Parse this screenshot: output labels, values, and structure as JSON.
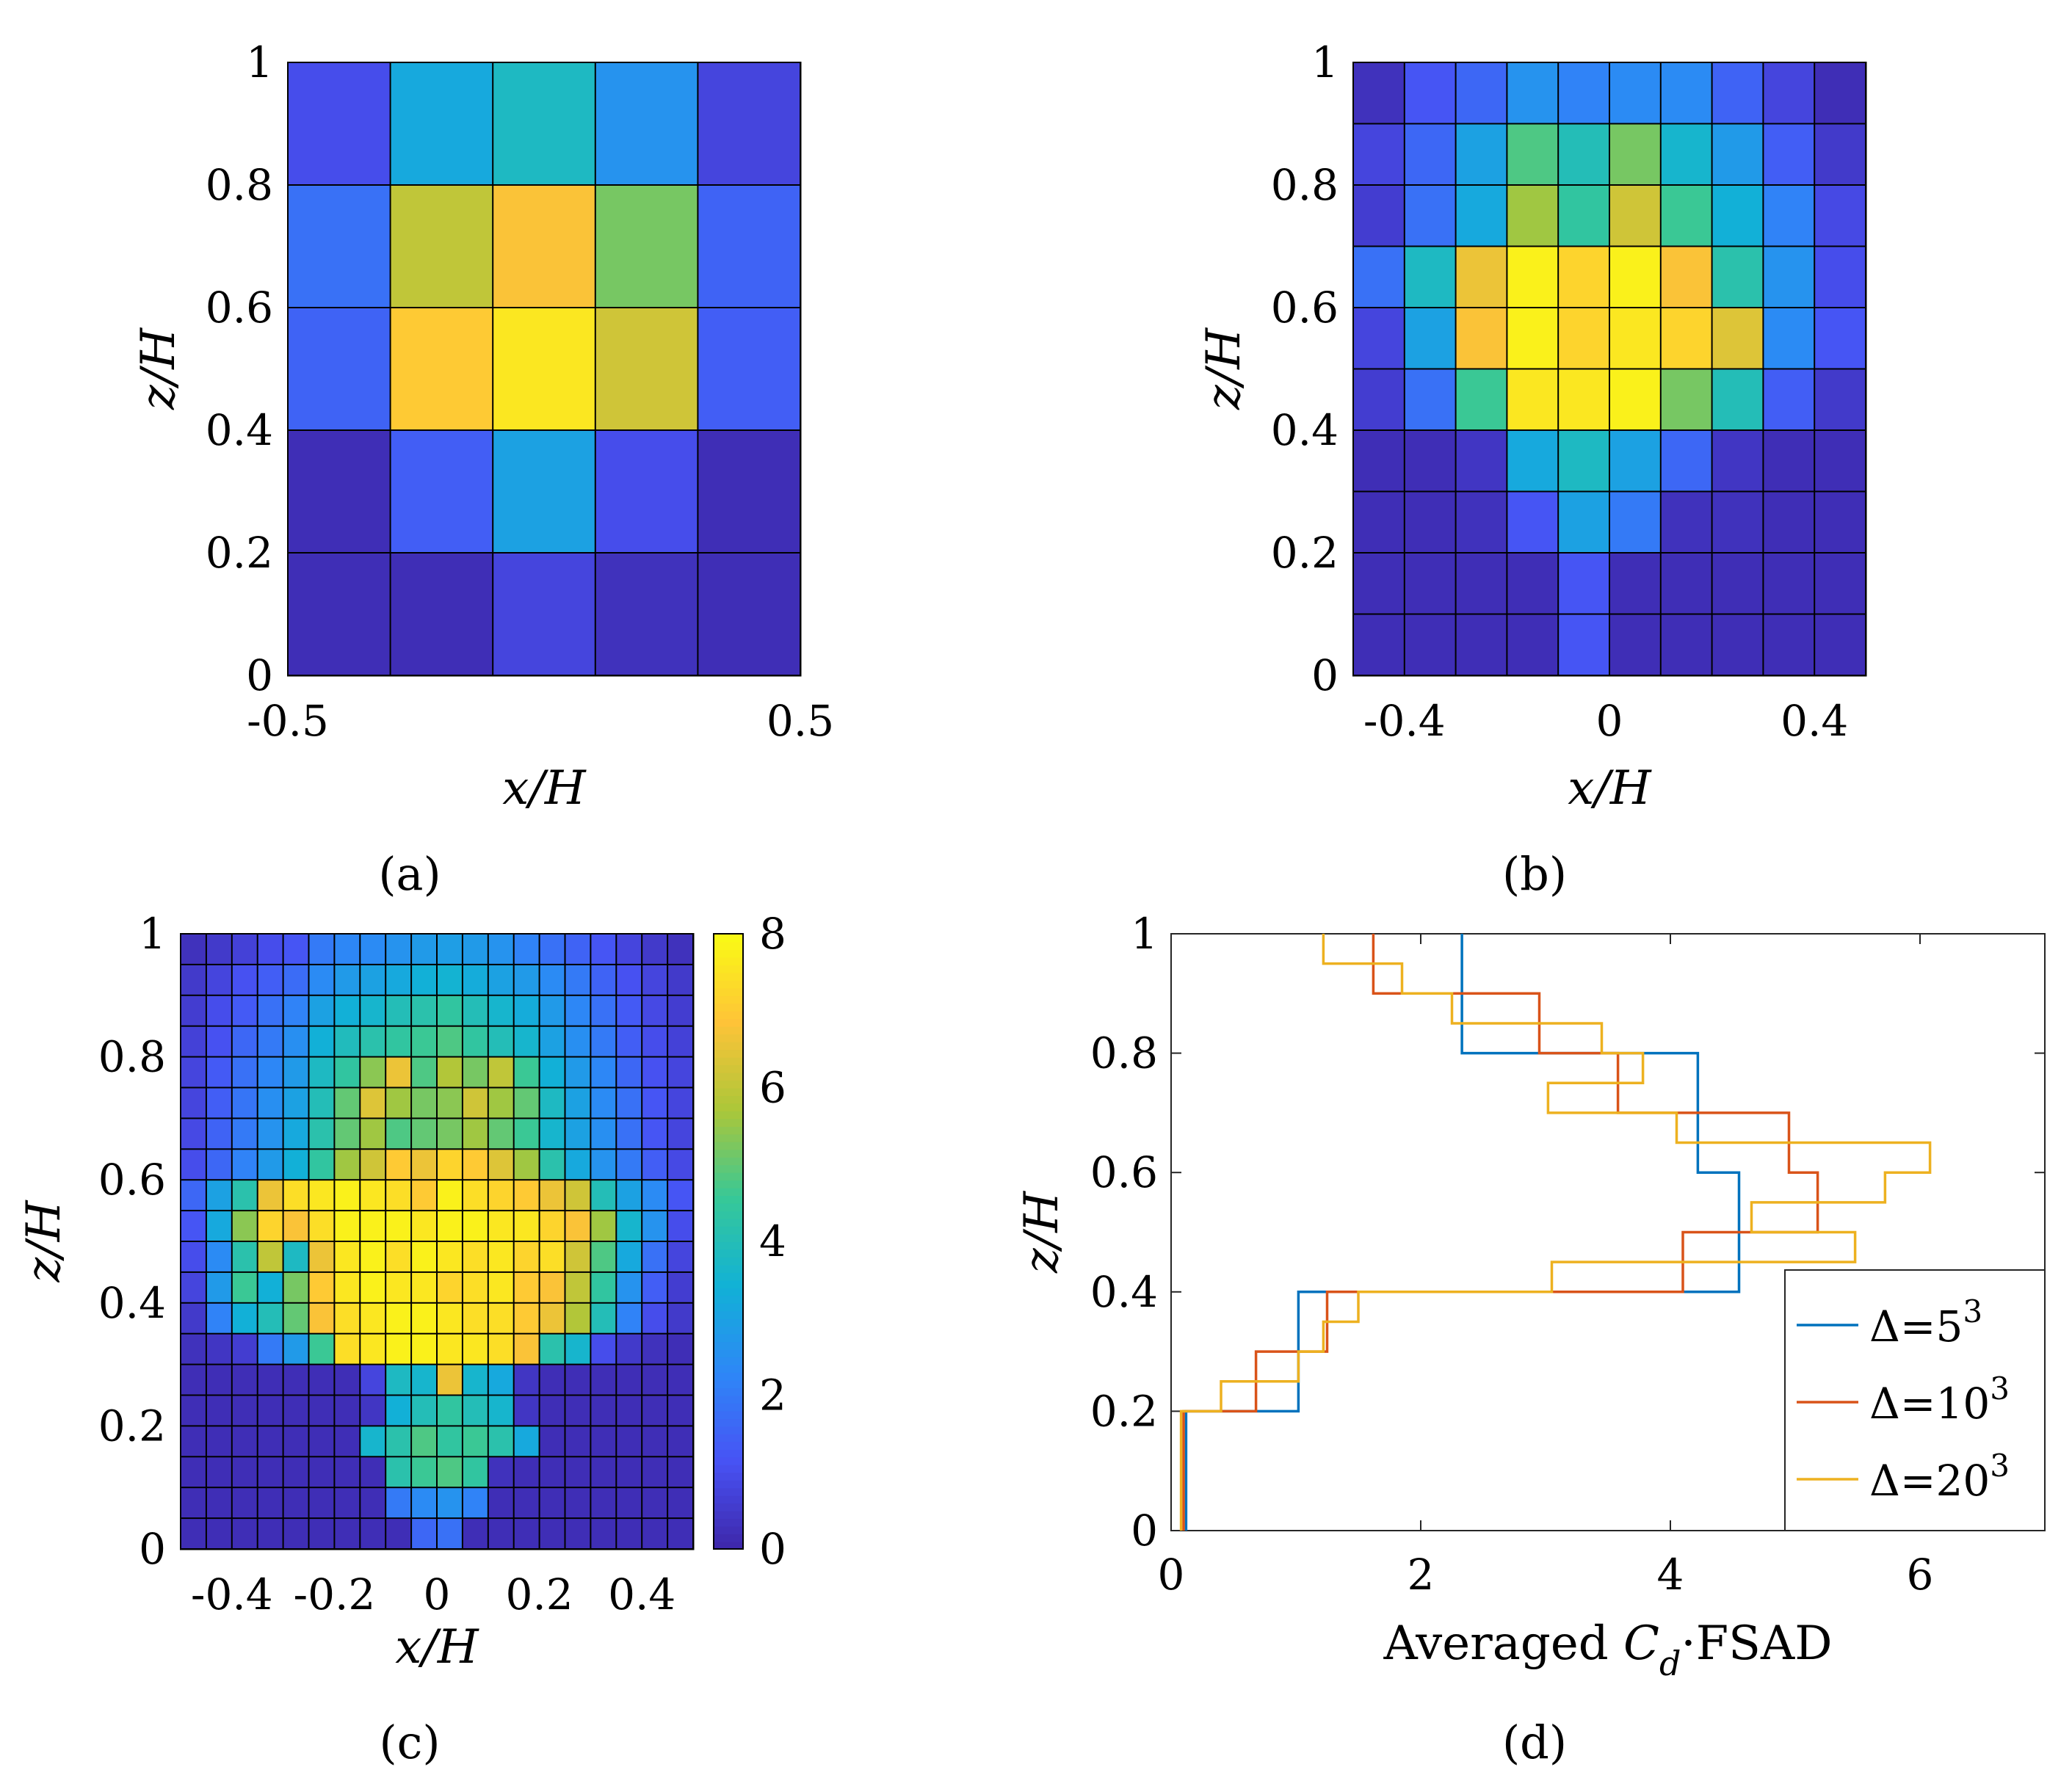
{
  "figure": {
    "panel_labels": [
      "(a)",
      "(b)",
      "(c)",
      "(d)"
    ]
  },
  "chart_data": [
    {
      "panel": "a",
      "type": "heatmap",
      "xlabel": "x/H",
      "ylabel": "z/H",
      "xlim": [
        -0.5,
        0.5
      ],
      "ylim": [
        0,
        1
      ],
      "xticks": [
        "-0.5",
        "0.5"
      ],
      "yticks": [
        "0",
        "0.2",
        "0.4",
        "0.6",
        "0.8",
        "1"
      ],
      "z_rows_top_to_bottom": [
        [
          1.0,
          3.2,
          3.8,
          2.6,
          0.8
        ],
        [
          1.8,
          6.0,
          6.8,
          5.2,
          1.5
        ],
        [
          1.5,
          7.0,
          7.6,
          6.2,
          1.4
        ],
        [
          0.2,
          1.4,
          3.0,
          1.0,
          0.2
        ],
        [
          0.2,
          0.2,
          0.8,
          0.3,
          0.2
        ]
      ],
      "colorscale": "parula",
      "clim": [
        0,
        8
      ]
    },
    {
      "panel": "b",
      "type": "heatmap",
      "xlabel": "x/H",
      "ylabel": "z/H",
      "xlim": [
        -0.5,
        0.5
      ],
      "ylim": [
        0,
        1
      ],
      "xticks": [
        "-0.4",
        "0",
        "0.4"
      ],
      "yticks": [
        "0",
        "0.2",
        "0.4",
        "0.6",
        "0.8",
        "1"
      ],
      "z_rows_top_to_bottom": [
        [
          0.3,
          1.2,
          1.6,
          2.6,
          2.2,
          2.4,
          2.4,
          1.5,
          0.8,
          0.2
        ],
        [
          0.8,
          1.6,
          3.0,
          4.8,
          4.0,
          5.2,
          3.6,
          2.8,
          1.4,
          0.5
        ],
        [
          0.6,
          1.8,
          3.2,
          5.6,
          4.4,
          6.2,
          4.6,
          3.4,
          2.2,
          0.9
        ],
        [
          1.8,
          3.8,
          6.6,
          7.8,
          7.2,
          7.8,
          6.8,
          4.2,
          2.6,
          1.0
        ],
        [
          0.8,
          3.0,
          6.8,
          7.8,
          7.2,
          7.6,
          7.2,
          6.4,
          2.4,
          1.2
        ],
        [
          0.6,
          1.8,
          4.6,
          7.6,
          7.6,
          7.8,
          5.2,
          4.0,
          1.4,
          0.5
        ],
        [
          0.2,
          0.2,
          0.4,
          3.2,
          3.8,
          3.0,
          1.6,
          0.4,
          0.2,
          0.2
        ],
        [
          0.2,
          0.2,
          0.3,
          1.2,
          3.0,
          2.0,
          0.3,
          0.3,
          0.2,
          0.2
        ],
        [
          0.2,
          0.2,
          0.2,
          0.2,
          1.2,
          0.2,
          0.2,
          0.2,
          0.2,
          0.2
        ],
        [
          0.2,
          0.2,
          0.2,
          0.2,
          1.2,
          0.2,
          0.2,
          0.2,
          0.2,
          0.2
        ]
      ],
      "colorscale": "parula",
      "clim": [
        0,
        8
      ]
    },
    {
      "panel": "c",
      "type": "heatmap",
      "xlabel": "x/H",
      "ylabel": "z/H",
      "xlim": [
        -0.5,
        0.5
      ],
      "ylim": [
        0,
        1
      ],
      "xticks": [
        "-0.4",
        "-0.2",
        "0",
        "0.2",
        "0.4"
      ],
      "yticks": [
        "0",
        "0.2",
        "0.4",
        "0.6",
        "0.8",
        "1"
      ],
      "colorbar": {
        "ticks": [
          "0",
          "2",
          "4",
          "6",
          "8"
        ],
        "range": [
          0,
          8
        ]
      },
      "z_rows_top_to_bottom": [
        [
          0.3,
          0.5,
          0.7,
          1.0,
          1.2,
          2.0,
          2.3,
          2.4,
          2.6,
          2.8,
          2.9,
          2.8,
          2.6,
          2.2,
          1.8,
          1.5,
          1.2,
          0.8,
          0.5,
          0.3
        ],
        [
          0.5,
          0.8,
          1.1,
          1.4,
          1.7,
          2.4,
          2.8,
          3.0,
          3.2,
          3.4,
          3.5,
          3.3,
          3.0,
          2.8,
          2.4,
          2.0,
          1.5,
          1.1,
          0.8,
          0.5
        ],
        [
          0.6,
          1.0,
          1.3,
          1.8,
          2.2,
          3.0,
          3.4,
          3.6,
          4.0,
          4.2,
          4.4,
          4.0,
          3.6,
          3.3,
          2.8,
          2.3,
          1.8,
          1.3,
          0.9,
          0.6
        ],
        [
          0.7,
          1.1,
          1.6,
          2.0,
          2.5,
          3.4,
          3.9,
          4.2,
          4.4,
          4.6,
          4.8,
          4.4,
          4.0,
          3.6,
          3.0,
          2.5,
          2.0,
          1.4,
          1.0,
          0.7
        ],
        [
          0.8,
          1.3,
          1.8,
          2.3,
          2.8,
          3.8,
          4.4,
          5.4,
          6.6,
          4.8,
          5.8,
          5.2,
          6.0,
          4.6,
          3.4,
          2.8,
          2.3,
          1.6,
          1.1,
          0.8
        ],
        [
          0.8,
          1.4,
          1.9,
          2.5,
          3.0,
          4.0,
          5.0,
          6.4,
          5.6,
          5.2,
          5.4,
          6.2,
          5.6,
          5.0,
          3.8,
          3.0,
          2.4,
          1.8,
          1.2,
          0.8
        ],
        [
          0.9,
          1.5,
          2.0,
          2.6,
          3.2,
          4.2,
          5.0,
          5.6,
          4.8,
          5.0,
          5.2,
          5.6,
          5.0,
          4.6,
          3.6,
          3.0,
          2.5,
          1.8,
          1.2,
          0.8
        ],
        [
          1.0,
          1.6,
          2.2,
          2.8,
          3.4,
          4.4,
          5.6,
          6.2,
          7.0,
          6.6,
          7.2,
          7.0,
          6.4,
          5.6,
          4.2,
          3.2,
          2.6,
          2.0,
          1.4,
          0.9
        ],
        [
          1.6,
          3.0,
          4.2,
          6.6,
          7.4,
          7.6,
          7.8,
          7.6,
          7.4,
          7.0,
          7.8,
          7.4,
          7.2,
          7.0,
          6.6,
          6.2,
          4.0,
          3.0,
          2.4,
          1.2
        ],
        [
          1.2,
          3.2,
          5.4,
          7.2,
          6.8,
          7.4,
          7.8,
          7.8,
          7.8,
          7.6,
          7.8,
          7.8,
          7.6,
          7.6,
          7.2,
          6.8,
          5.6,
          3.6,
          2.6,
          1.0
        ],
        [
          1.0,
          2.4,
          4.2,
          6.0,
          3.8,
          6.6,
          7.6,
          7.8,
          7.4,
          7.8,
          7.6,
          7.4,
          7.6,
          7.2,
          7.4,
          6.2,
          4.8,
          3.2,
          1.8,
          0.8
        ],
        [
          0.8,
          2.8,
          4.6,
          3.4,
          5.2,
          7.0,
          7.6,
          7.8,
          7.6,
          7.6,
          7.2,
          7.4,
          7.6,
          7.0,
          6.8,
          6.0,
          4.4,
          2.6,
          1.4,
          0.6
        ],
        [
          0.5,
          2.2,
          3.4,
          4.0,
          5.0,
          6.8,
          7.4,
          7.6,
          7.8,
          7.8,
          7.6,
          7.4,
          7.4,
          7.0,
          6.6,
          5.8,
          4.0,
          2.2,
          1.0,
          0.5
        ],
        [
          0.3,
          0.4,
          0.6,
          2.0,
          2.8,
          4.6,
          7.4,
          7.6,
          7.8,
          7.8,
          7.6,
          7.6,
          7.4,
          6.8,
          4.2,
          3.6,
          1.0,
          0.5,
          0.3,
          0.2
        ],
        [
          0.2,
          0.2,
          0.2,
          0.2,
          0.2,
          0.2,
          0.2,
          0.8,
          3.8,
          3.6,
          6.6,
          3.6,
          3.2,
          0.4,
          0.2,
          0.2,
          0.2,
          0.2,
          0.2,
          0.2
        ],
        [
          0.2,
          0.2,
          0.2,
          0.2,
          0.2,
          0.2,
          0.2,
          0.4,
          3.4,
          4.0,
          4.4,
          4.0,
          3.6,
          0.4,
          0.2,
          0.2,
          0.2,
          0.2,
          0.2,
          0.2
        ],
        [
          0.2,
          0.2,
          0.2,
          0.2,
          0.2,
          0.2,
          0.2,
          3.6,
          4.2,
          4.8,
          4.4,
          4.6,
          4.2,
          3.2,
          0.2,
          0.2,
          0.2,
          0.2,
          0.2,
          0.2
        ],
        [
          0.2,
          0.2,
          0.2,
          0.2,
          0.2,
          0.2,
          0.2,
          0.2,
          4.2,
          4.6,
          4.8,
          4.4,
          0.3,
          0.2,
          0.2,
          0.2,
          0.2,
          0.2,
          0.2,
          0.2
        ],
        [
          0.2,
          0.2,
          0.2,
          0.2,
          0.2,
          0.2,
          0.2,
          0.2,
          2.0,
          2.4,
          2.6,
          2.2,
          0.2,
          0.2,
          0.2,
          0.2,
          0.2,
          0.2,
          0.2,
          0.2
        ],
        [
          0.2,
          0.2,
          0.2,
          0.2,
          0.2,
          0.2,
          0.2,
          0.2,
          0.2,
          1.6,
          1.8,
          0.2,
          0.2,
          0.2,
          0.2,
          0.2,
          0.2,
          0.2,
          0.2,
          0.2
        ]
      ],
      "colorscale": "parula",
      "clim": [
        0,
        8
      ]
    },
    {
      "panel": "d",
      "type": "line",
      "xlabel_prefix": "Averaged ",
      "xlabel_italic": "C",
      "xlabel_sub": "d",
      "xlabel_suffix": "·FSAD",
      "ylabel": "z/H",
      "xlim": [
        0,
        7
      ],
      "ylim": [
        0,
        1
      ],
      "xticks": [
        "0",
        "2",
        "4",
        "6"
      ],
      "yticks": [
        "0",
        "0.2",
        "0.4",
        "0.6",
        "0.8",
        "1"
      ],
      "legend_position": "bottom-right",
      "series": [
        {
          "name_base": "Δ=5",
          "name_exp": "3",
          "color": "#0072BD",
          "bins": [
            {
              "z0": 0.0,
              "z1": 0.2,
              "x": 0.12
            },
            {
              "z0": 0.2,
              "z1": 0.4,
              "x": 1.02
            },
            {
              "z0": 0.4,
              "z1": 0.6,
              "x": 4.55
            },
            {
              "z0": 0.6,
              "z1": 0.8,
              "x": 4.22
            },
            {
              "z0": 0.8,
              "z1": 1.0,
              "x": 2.33
            }
          ]
        },
        {
          "name_base": "Δ=10",
          "name_exp": "3",
          "color": "#D95319",
          "bins": [
            {
              "z0": 0.0,
              "z1": 0.1,
              "x": 0.1
            },
            {
              "z0": 0.1,
              "z1": 0.2,
              "x": 0.1
            },
            {
              "z0": 0.2,
              "z1": 0.3,
              "x": 0.68
            },
            {
              "z0": 0.3,
              "z1": 0.4,
              "x": 1.25
            },
            {
              "z0": 0.4,
              "z1": 0.5,
              "x": 4.1
            },
            {
              "z0": 0.5,
              "z1": 0.6,
              "x": 5.18
            },
            {
              "z0": 0.6,
              "z1": 0.7,
              "x": 4.95
            },
            {
              "z0": 0.7,
              "z1": 0.8,
              "x": 3.58
            },
            {
              "z0": 0.8,
              "z1": 0.9,
              "x": 2.95
            },
            {
              "z0": 0.9,
              "z1": 1.0,
              "x": 1.62
            }
          ]
        },
        {
          "name_base": "Δ=20",
          "name_exp": "3",
          "color": "#EDB120",
          "bins": [
            {
              "z0": 0.0,
              "z1": 0.05,
              "x": 0.08
            },
            {
              "z0": 0.05,
              "z1": 0.1,
              "x": 0.08
            },
            {
              "z0": 0.1,
              "z1": 0.15,
              "x": 0.08
            },
            {
              "z0": 0.15,
              "z1": 0.2,
              "x": 0.08
            },
            {
              "z0": 0.2,
              "z1": 0.25,
              "x": 0.4
            },
            {
              "z0": 0.25,
              "z1": 0.3,
              "x": 1.02
            },
            {
              "z0": 0.3,
              "z1": 0.35,
              "x": 1.22
            },
            {
              "z0": 0.35,
              "z1": 0.4,
              "x": 1.5
            },
            {
              "z0": 0.4,
              "z1": 0.45,
              "x": 3.05
            },
            {
              "z0": 0.45,
              "z1": 0.5,
              "x": 5.48
            },
            {
              "z0": 0.5,
              "z1": 0.55,
              "x": 4.65
            },
            {
              "z0": 0.55,
              "z1": 0.6,
              "x": 5.72
            },
            {
              "z0": 0.6,
              "z1": 0.65,
              "x": 6.08
            },
            {
              "z0": 0.65,
              "z1": 0.7,
              "x": 4.05
            },
            {
              "z0": 0.7,
              "z1": 0.75,
              "x": 3.02
            },
            {
              "z0": 0.75,
              "z1": 0.8,
              "x": 3.78
            },
            {
              "z0": 0.8,
              "z1": 0.85,
              "x": 3.45
            },
            {
              "z0": 0.85,
              "z1": 0.9,
              "x": 2.25
            },
            {
              "z0": 0.9,
              "z1": 0.95,
              "x": 1.85
            },
            {
              "z0": 0.95,
              "z1": 1.0,
              "x": 1.22
            }
          ]
        }
      ]
    }
  ]
}
